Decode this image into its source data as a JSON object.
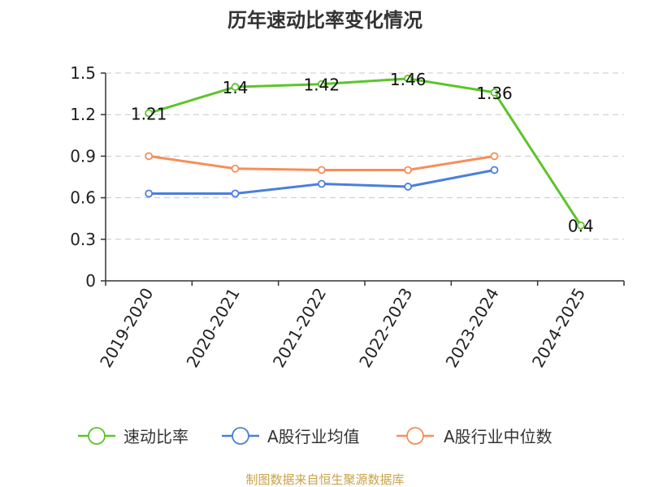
{
  "chart_data": {
    "type": "line",
    "title": "历年速动比率变化情况",
    "categories": [
      "2019-2020",
      "2020-2021",
      "2021-2022",
      "2022-2023",
      "2023-2024",
      "2024-2025"
    ],
    "ylim": [
      0,
      1.5
    ],
    "yticks": [
      0,
      0.3,
      0.6,
      0.9,
      1.2,
      1.5
    ],
    "ytick_labels": [
      "0",
      "0.3",
      "0.6",
      "0.9",
      "1.2",
      "1.5"
    ],
    "grid": "horizontal-dashed",
    "legend_position": "bottom",
    "series": [
      {
        "name": "速动比率",
        "color": "#5bc52a",
        "values": [
          1.21,
          1.4,
          1.42,
          1.46,
          1.36,
          0.4
        ],
        "labels": [
          "1.21",
          "1.4",
          "1.42",
          "1.46",
          "1.36",
          "0.4"
        ]
      },
      {
        "name": "A股行业均值",
        "color": "#4a7fdc",
        "values": [
          0.63,
          0.63,
          0.7,
          0.68,
          0.8,
          null
        ]
      },
      {
        "name": "A股行业中位数",
        "color": "#f68e5a",
        "values": [
          0.9,
          0.81,
          0.8,
          0.8,
          0.9,
          null
        ]
      }
    ]
  },
  "source": "制图数据来自恒生聚源数据库"
}
